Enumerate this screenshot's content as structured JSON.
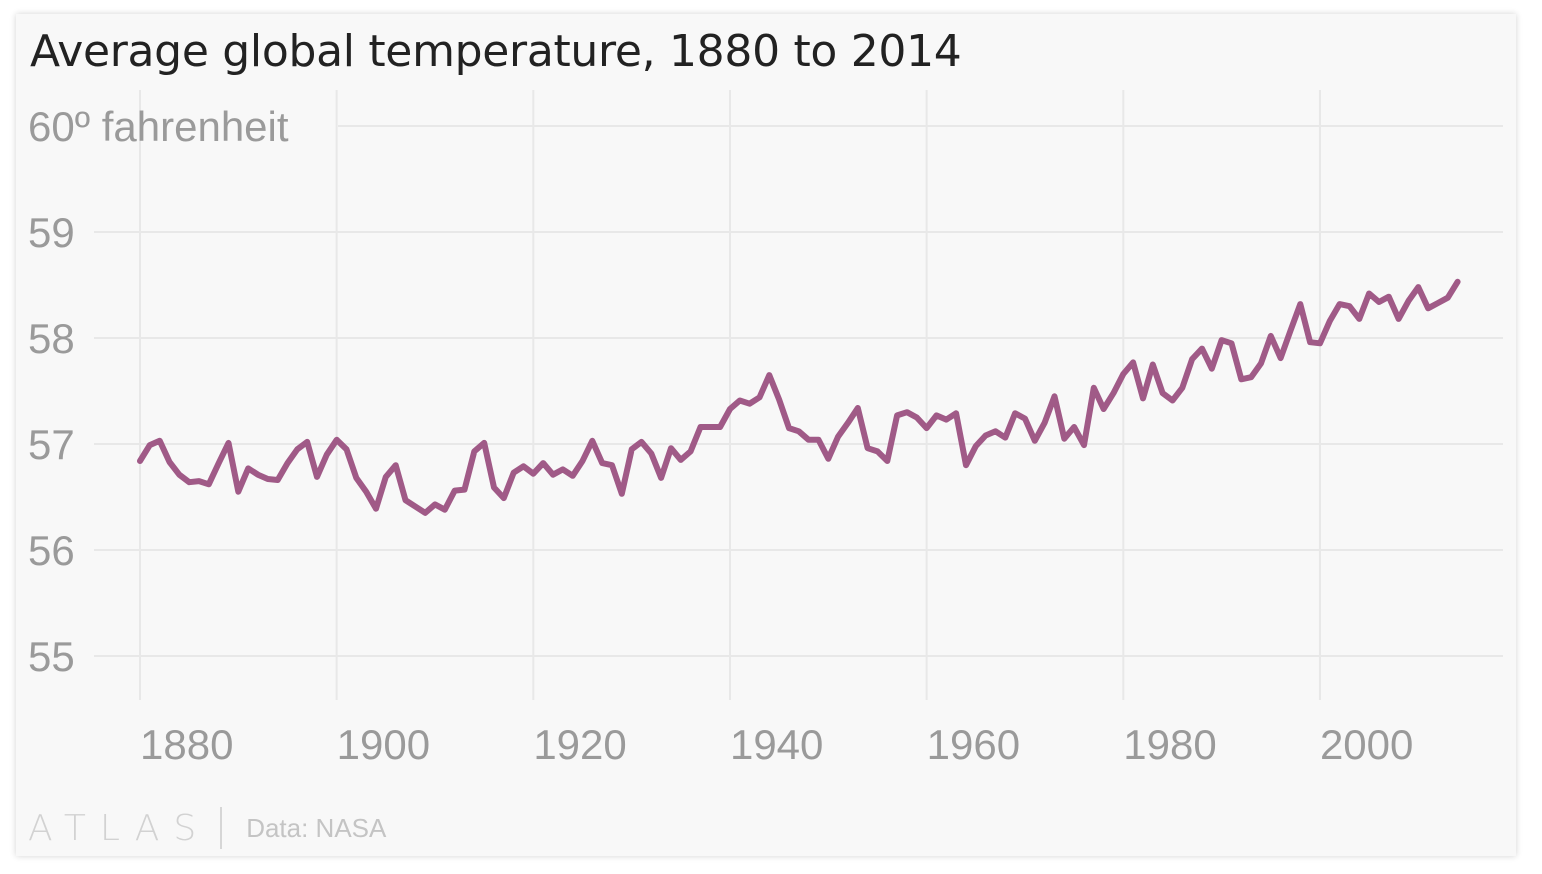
{
  "chart_data": {
    "type": "line",
    "title": "Average global temperature, 1880 to 2014",
    "xlabel": "",
    "ylabel": "",
    "y_unit_label": "60º fahrenheit",
    "y_ticks": [
      {
        "value": 60,
        "label": "60º fahrenheit"
      },
      {
        "value": 59,
        "label": "59"
      },
      {
        "value": 58,
        "label": "58"
      },
      {
        "value": 57,
        "label": "57"
      },
      {
        "value": 56,
        "label": "56"
      },
      {
        "value": 55,
        "label": "55"
      }
    ],
    "x_ticks": [
      {
        "value": 1880,
        "label": "1880"
      },
      {
        "value": 1900,
        "label": "1900"
      },
      {
        "value": 1920,
        "label": "1920"
      },
      {
        "value": 1940,
        "label": "1940"
      },
      {
        "value": 1960,
        "label": "1960"
      },
      {
        "value": 1980,
        "label": "1980"
      },
      {
        "value": 2000,
        "label": "2000"
      }
    ],
    "xlim": [
      1880,
      2014
    ],
    "ylim": [
      55,
      60
    ],
    "grid": true,
    "legend": "none",
    "series": [
      {
        "name": "Average global temperature (°F)",
        "color": "#a05a87",
        "x": [
          1880,
          1881,
          1882,
          1883,
          1884,
          1885,
          1886,
          1887,
          1888,
          1889,
          1890,
          1891,
          1892,
          1893,
          1894,
          1895,
          1896,
          1897,
          1898,
          1899,
          1900,
          1901,
          1902,
          1903,
          1904,
          1905,
          1906,
          1907,
          1908,
          1909,
          1910,
          1911,
          1912,
          1913,
          1914,
          1915,
          1916,
          1917,
          1918,
          1919,
          1920,
          1921,
          1922,
          1923,
          1924,
          1925,
          1926,
          1927,
          1928,
          1929,
          1930,
          1931,
          1932,
          1933,
          1934,
          1935,
          1936,
          1937,
          1938,
          1939,
          1940,
          1941,
          1942,
          1943,
          1944,
          1945,
          1946,
          1947,
          1948,
          1949,
          1950,
          1951,
          1952,
          1953,
          1954,
          1955,
          1956,
          1957,
          1958,
          1959,
          1960,
          1961,
          1962,
          1963,
          1964,
          1965,
          1966,
          1967,
          1968,
          1969,
          1970,
          1971,
          1972,
          1973,
          1974,
          1975,
          1976,
          1977,
          1978,
          1979,
          1980,
          1981,
          1982,
          1983,
          1984,
          1985,
          1986,
          1987,
          1988,
          1989,
          1990,
          1991,
          1992,
          1993,
          1994,
          1995,
          1996,
          1997,
          1998,
          1999,
          2000,
          2001,
          2002,
          2003,
          2004,
          2005,
          2006,
          2007,
          2008,
          2009,
          2010,
          2011,
          2012,
          2013,
          2014
        ],
        "values": [
          56.84,
          56.99,
          57.03,
          56.83,
          56.71,
          56.64,
          56.65,
          56.62,
          56.82,
          57.01,
          56.55,
          56.77,
          56.71,
          56.67,
          56.66,
          56.82,
          56.95,
          57.02,
          56.69,
          56.9,
          57.04,
          56.95,
          56.68,
          56.55,
          56.39,
          56.69,
          56.8,
          56.47,
          56.41,
          56.35,
          56.43,
          56.38,
          56.56,
          56.57,
          56.93,
          57.01,
          56.59,
          56.49,
          56.73,
          56.79,
          56.72,
          56.82,
          56.71,
          56.76,
          56.7,
          56.84,
          57.03,
          56.82,
          56.8,
          56.53,
          56.95,
          57.02,
          56.91,
          56.68,
          56.96,
          56.85,
          56.93,
          57.16,
          57.16,
          57.16,
          57.33,
          57.41,
          57.38,
          57.44,
          57.65,
          57.42,
          57.15,
          57.12,
          57.04,
          57.04,
          56.86,
          57.07,
          57.2,
          57.34,
          56.96,
          56.93,
          56.84,
          57.27,
          57.3,
          57.25,
          57.15,
          57.27,
          57.23,
          57.29,
          56.8,
          56.98,
          57.08,
          57.12,
          57.06,
          57.29,
          57.24,
          57.03,
          57.2,
          57.45,
          57.05,
          57.16,
          56.99,
          57.53,
          57.33,
          57.48,
          57.66,
          57.77,
          57.43,
          57.75,
          57.48,
          57.41,
          57.53,
          57.8,
          57.9,
          57.71,
          57.98,
          57.95,
          57.61,
          57.63,
          57.76,
          58.02,
          57.81,
          58.07,
          58.32,
          57.96,
          57.95,
          58.16,
          58.32,
          58.3,
          58.18,
          58.42,
          58.34,
          58.39,
          58.18,
          58.35,
          58.48,
          58.28,
          58.33,
          58.38,
          58.53
        ]
      }
    ]
  },
  "footer": {
    "logo": "ATLAS",
    "source": "Data: NASA"
  }
}
